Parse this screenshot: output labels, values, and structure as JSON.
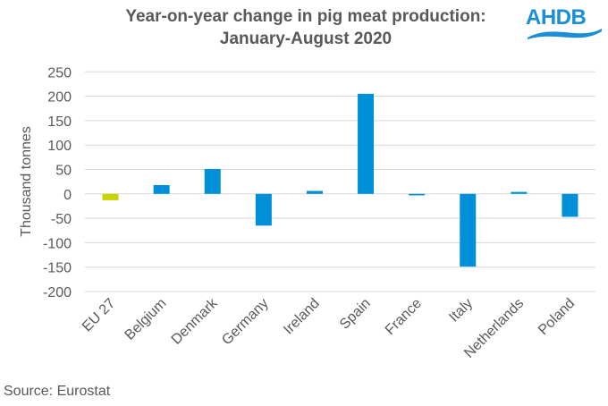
{
  "logo": {
    "text": "AHDB",
    "color": "#1a8fd6"
  },
  "source": "Source: Eurostat",
  "chart_data": {
    "type": "bar",
    "title": "Year-on-year change in pig meat production:",
    "subtitle": "January-August 2020",
    "xlabel": "",
    "ylabel": "Thousand tonnes",
    "categories": [
      "EU 27",
      "Belgium",
      "Denmark",
      "Germany",
      "Ireland",
      "Spain",
      "France",
      "Italy",
      "Netherlands",
      "Poland"
    ],
    "values": [
      -13,
      18,
      51,
      -65,
      6,
      205,
      -3,
      -149,
      4,
      -47
    ],
    "bar_colors": [
      "#c8d400",
      "#0090d8",
      "#0090d8",
      "#0090d8",
      "#0090d8",
      "#0090d8",
      "#0090d8",
      "#0090d8",
      "#0090d8",
      "#0090d8"
    ],
    "ylim": [
      -200,
      250
    ],
    "yticks": [
      250,
      200,
      150,
      100,
      50,
      0,
      -50,
      -100,
      -150,
      -200
    ],
    "ytick_labels": [
      "250",
      "200",
      "150",
      "100",
      "50",
      "0",
      "-50",
      "-100",
      "-150",
      "-200"
    ],
    "grid": true,
    "gridline_color": "#d9d9d9",
    "legend": "none"
  }
}
